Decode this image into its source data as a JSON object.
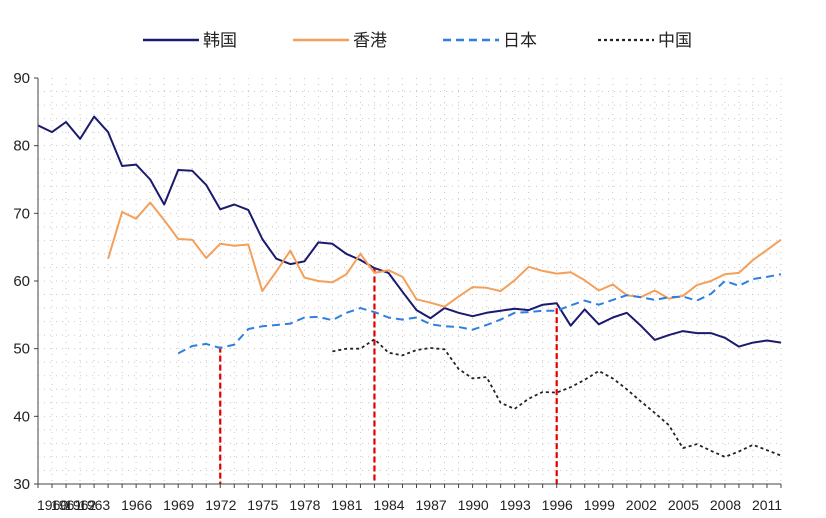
{
  "chart_data": {
    "type": "line",
    "title": "",
    "xlabel": "",
    "ylabel": "",
    "ylim": [
      30,
      90
    ],
    "yticks": [
      30,
      40,
      50,
      60,
      70,
      80,
      90
    ],
    "ytick_labels": [
      "30",
      "40",
      "50",
      "60",
      "70",
      "80",
      "90"
    ],
    "xlim": [
      1960,
      2013
    ],
    "xticks": [
      1960,
      1961,
      1962,
      1963,
      1966,
      1969,
      1972,
      1975,
      1978,
      1981,
      1984,
      1987,
      1990,
      1993,
      1996,
      1999,
      2002,
      2005,
      2008,
      2011
    ],
    "xtick_labels": [
      "1960",
      "1961",
      "1962",
      "1963",
      "1966",
      "1969",
      "1972",
      "1975",
      "1978",
      "1981",
      "1984",
      "1987",
      "1990",
      "1993",
      "1996",
      "1999",
      "2002",
      "2005",
      "2008",
      "2011"
    ],
    "grid": "dotted",
    "legend_position": "top",
    "series": [
      {
        "name": "韩国",
        "color": "#1a1a6e",
        "dash": "solid",
        "x": [
          1960,
          1961,
          1962,
          1963,
          1964,
          1965,
          1966,
          1967,
          1968,
          1969,
          1970,
          1971,
          1972,
          1973,
          1974,
          1975,
          1976,
          1977,
          1978,
          1979,
          1980,
          1981,
          1982,
          1983,
          1984,
          1985,
          1986,
          1987,
          1988,
          1989,
          1990,
          1991,
          1992,
          1993,
          1994,
          1995,
          1996,
          1997,
          1998,
          1999,
          2000,
          2001,
          2002,
          2003,
          2004,
          2005,
          2006,
          2007,
          2008,
          2009,
          2010,
          2011,
          2012,
          2013
        ],
        "values": [
          83,
          82,
          83.5,
          81,
          84.3,
          82,
          77,
          77.2,
          75,
          71.3,
          76.4,
          76.3,
          74.2,
          70.6,
          71.3,
          70.5,
          66.2,
          63.3,
          62.5,
          62.9,
          65.7,
          65.5,
          64,
          63.1,
          61.9,
          61.2,
          58.4,
          55.7,
          54.5,
          56,
          55.3,
          54.8,
          55.3,
          55.6,
          55.9,
          55.7,
          56.5,
          56.7,
          53.4,
          55.8,
          53.6,
          54.6,
          55.3,
          53.4,
          51.3,
          52,
          52.6,
          52.3,
          52.3,
          51.6,
          50.3,
          50.9,
          51.2,
          50.9
        ]
      },
      {
        "name": "香港",
        "color": "#f4a05a",
        "dash": "solid",
        "x": [
          1965,
          1966,
          1967,
          1968,
          1969,
          1970,
          1971,
          1972,
          1973,
          1974,
          1975,
          1976,
          1977,
          1978,
          1979,
          1980,
          1981,
          1982,
          1983,
          1984,
          1985,
          1986,
          1987,
          1988,
          1989,
          1990,
          1991,
          1992,
          1993,
          1994,
          1995,
          1996,
          1997,
          1998,
          1999,
          2000,
          2001,
          2002,
          2003,
          2004,
          2005,
          2006,
          2007,
          2008,
          2009,
          2010,
          2011,
          2012,
          2013
        ],
        "values": [
          63.3,
          70.2,
          69.2,
          71.6,
          69,
          66.2,
          66.1,
          63.4,
          65.5,
          65.2,
          65.4,
          58.5,
          61.4,
          64.5,
          60.5,
          60,
          59.8,
          61,
          64,
          61.2,
          61.6,
          60.6,
          57.3,
          56.8,
          56.2,
          57.7,
          59.1,
          59,
          58.5,
          60.1,
          62.1,
          61.5,
          61.1,
          61.3,
          60.1,
          58.6,
          59.5,
          57.9,
          57.6,
          58.6,
          57.4,
          57.8,
          59.4,
          60,
          61,
          61.2,
          63.1,
          64.6,
          66.1
        ]
      },
      {
        "name": "日本",
        "color": "#2f7fe0",
        "dash": "dash",
        "x": [
          1970,
          1971,
          1972,
          1973,
          1974,
          1975,
          1976,
          1977,
          1978,
          1979,
          1980,
          1981,
          1982,
          1983,
          1984,
          1985,
          1986,
          1987,
          1988,
          1989,
          1990,
          1991,
          1992,
          1993,
          1994,
          1995,
          1996,
          1997,
          1998,
          1999,
          2000,
          2001,
          2002,
          2003,
          2004,
          2005,
          2006,
          2007,
          2008,
          2009,
          2010,
          2011,
          2012,
          2013
        ],
        "values": [
          49.3,
          50.4,
          50.7,
          50.1,
          50.6,
          52.9,
          53.3,
          53.5,
          53.7,
          54.6,
          54.7,
          54.2,
          55.3,
          56,
          55.4,
          54.6,
          54.3,
          54.6,
          53.6,
          53.3,
          53.2,
          52.8,
          53.5,
          54.3,
          55.3,
          55.4,
          55.6,
          55.6,
          56.4,
          57.1,
          56.5,
          57.2,
          57.9,
          57.6,
          57.2,
          57.6,
          57.7,
          57.1,
          58.1,
          60,
          59.3,
          60.3,
          60.6,
          61
        ]
      },
      {
        "name": "中国",
        "color": "#222222",
        "dash": "dot",
        "x": [
          1981,
          1982,
          1983,
          1984,
          1985,
          1986,
          1987,
          1988,
          1989,
          1990,
          1991,
          1992,
          1993,
          1994,
          1995,
          1996,
          1997,
          1998,
          1999,
          2000,
          2001,
          2002,
          2003,
          2004,
          2005,
          2006,
          2007,
          2008,
          2009,
          2010,
          2011,
          2012,
          2013
        ],
        "values": [
          49.6,
          50,
          50,
          51.4,
          49.4,
          49,
          49.8,
          50.1,
          49.9,
          47,
          45.6,
          45.8,
          42,
          41.1,
          42.6,
          43.6,
          43.5,
          44.3,
          45.4,
          46.7,
          45.6,
          44,
          42.2,
          40.5,
          38.7,
          35.3,
          35.9,
          34.9,
          34,
          34.8,
          35.8,
          35,
          34.2
        ]
      }
    ],
    "markers": [
      {
        "x": 1973,
        "y_top": 50.3,
        "color": "#e00000"
      },
      {
        "x": 1984,
        "y_top": 62,
        "color": "#e00000"
      },
      {
        "x": 1997,
        "y_top": 56,
        "color": "#e00000"
      }
    ]
  }
}
